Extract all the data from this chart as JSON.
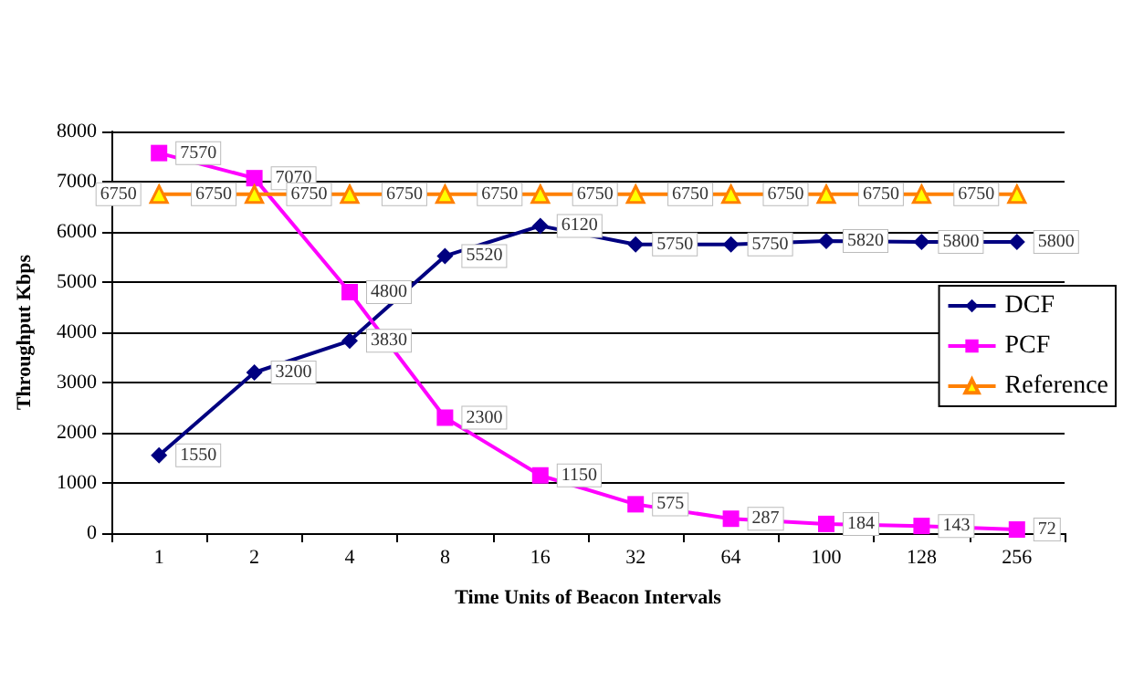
{
  "chart_data": {
    "type": "line",
    "xlabel": "Time Units of Beacon Intervals",
    "ylabel": "Throughput Kbps",
    "categories": [
      "1",
      "2",
      "4",
      "8",
      "16",
      "32",
      "64",
      "100",
      "128",
      "256"
    ],
    "series": [
      {
        "name": "DCF",
        "color": "#000080",
        "marker": "diamond",
        "values": [
          1550,
          3200,
          3830,
          5520,
          6120,
          5750,
          5750,
          5820,
          5800,
          5800
        ]
      },
      {
        "name": "PCF",
        "color": "#ff00ff",
        "marker": "square",
        "values": [
          7570,
          7070,
          4800,
          2300,
          1150,
          575,
          287,
          184,
          143,
          72
        ]
      },
      {
        "name": "Reference",
        "color": "#ff8000",
        "marker": "triangle",
        "values": [
          6750,
          6750,
          6750,
          6750,
          6750,
          6750,
          6750,
          6750,
          6750,
          6750
        ]
      }
    ],
    "ylim": [
      0,
      8000
    ],
    "yticks": [
      0,
      1000,
      2000,
      3000,
      4000,
      5000,
      6000,
      7000,
      8000
    ],
    "grid": "y",
    "legend": "right",
    "data_labels": true,
    "line_style": "solid"
  }
}
